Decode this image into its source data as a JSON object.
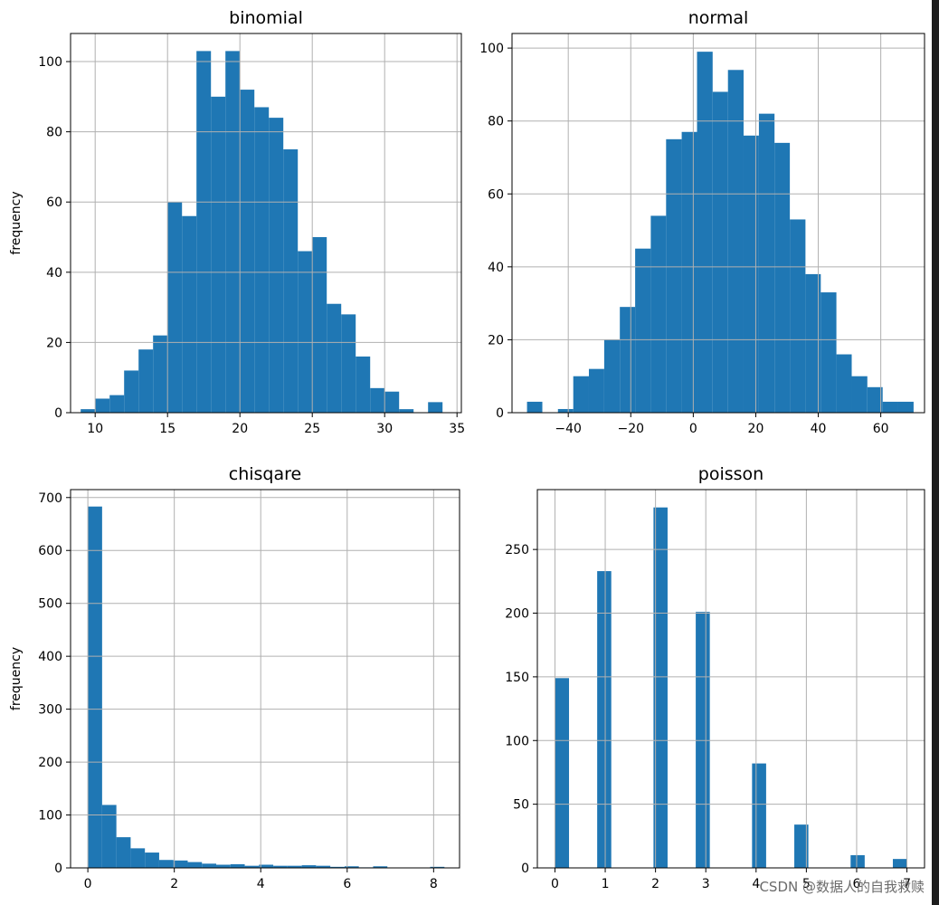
{
  "watermark": "CSDN @数据人的自我救赎",
  "colors": {
    "bar": "#1f77b4",
    "grid": "#b0b0b0",
    "axis": "#000000",
    "background": "#ffffff"
  },
  "chart_data": [
    {
      "type": "bar",
      "title": "binomial",
      "ylabel": "frequency",
      "grid": true,
      "xlim": [
        8.3,
        35.3
      ],
      "ylim": [
        0,
        108
      ],
      "xticks": [
        10,
        15,
        20,
        25,
        30,
        35
      ],
      "yticks": [
        0,
        20,
        40,
        60,
        80,
        100
      ],
      "bin_edges": [
        9,
        10,
        11,
        12,
        13,
        14,
        15,
        16,
        17,
        18,
        19,
        20,
        21,
        22,
        23,
        24,
        25,
        26,
        27,
        28,
        29,
        30,
        31,
        32,
        33,
        34
      ],
      "values": [
        1,
        4,
        5,
        12,
        18,
        22,
        60,
        56,
        103,
        90,
        103,
        92,
        87,
        84,
        75,
        46,
        50,
        31,
        28,
        16,
        7,
        6,
        1,
        0,
        3
      ]
    },
    {
      "type": "bar",
      "title": "normal",
      "ylabel": "",
      "grid": true,
      "xlim": [
        -58,
        74
      ],
      "ylim": [
        0,
        104
      ],
      "xticks": [
        -40,
        -20,
        0,
        20,
        40,
        60
      ],
      "yticks": [
        0,
        20,
        40,
        60,
        80,
        100
      ],
      "bin_edges": [
        -53.2,
        -48.3,
        -43.3,
        -38.4,
        -33.4,
        -28.5,
        -23.5,
        -18.6,
        -13.6,
        -8.7,
        -3.7,
        1.2,
        6.2,
        11.1,
        16.1,
        21.0,
        26.0,
        30.9,
        35.9,
        40.8,
        45.8,
        50.7,
        55.7,
        60.6,
        65.6,
        70.5
      ],
      "values": [
        3,
        0,
        1,
        10,
        12,
        20,
        29,
        45,
        54,
        75,
        77,
        99,
        88,
        94,
        76,
        82,
        74,
        53,
        38,
        33,
        16,
        10,
        7,
        3,
        3
      ]
    },
    {
      "type": "bar",
      "title": "chisqare",
      "ylabel": "frequency",
      "grid": true,
      "xlim": [
        -0.4,
        8.6
      ],
      "ylim": [
        0,
        715
      ],
      "xticks": [
        0,
        2,
        4,
        6,
        8
      ],
      "yticks": [
        0,
        100,
        200,
        300,
        400,
        500,
        600,
        700
      ],
      "bin_edges": [
        0.0,
        0.33,
        0.66,
        0.99,
        1.32,
        1.65,
        1.98,
        2.31,
        2.64,
        2.97,
        3.3,
        3.63,
        3.96,
        4.29,
        4.62,
        4.95,
        5.28,
        5.61,
        5.94,
        6.27,
        6.6,
        6.93,
        7.26,
        7.59,
        7.92,
        8.25
      ],
      "values": [
        683,
        119,
        58,
        37,
        29,
        15,
        14,
        11,
        8,
        6,
        7,
        4,
        6,
        4,
        4,
        5,
        4,
        2,
        3,
        1,
        3,
        0,
        0,
        0,
        2
      ]
    },
    {
      "type": "bar",
      "title": "poisson",
      "ylabel": "",
      "grid": true,
      "xlim": [
        -0.35,
        7.35
      ],
      "ylim": [
        0,
        297
      ],
      "xticks": [
        0,
        1,
        2,
        3,
        4,
        5,
        6,
        7
      ],
      "yticks": [
        0,
        50,
        100,
        150,
        200,
        250
      ],
      "bin_edges": [
        0,
        0.28,
        0.56,
        0.84,
        1.12,
        1.4,
        1.68,
        1.96,
        2.24,
        2.52,
        2.8,
        3.08,
        3.36,
        3.64,
        3.92,
        4.2,
        4.48,
        4.76,
        5.04,
        5.32,
        5.6,
        5.88,
        6.16,
        6.44,
        6.72,
        7.0
      ],
      "values": [
        149,
        0,
        0,
        233,
        0,
        0,
        0,
        283,
        0,
        0,
        201,
        0,
        0,
        0,
        82,
        0,
        0,
        34,
        0,
        0,
        0,
        10,
        0,
        0,
        7
      ]
    }
  ]
}
